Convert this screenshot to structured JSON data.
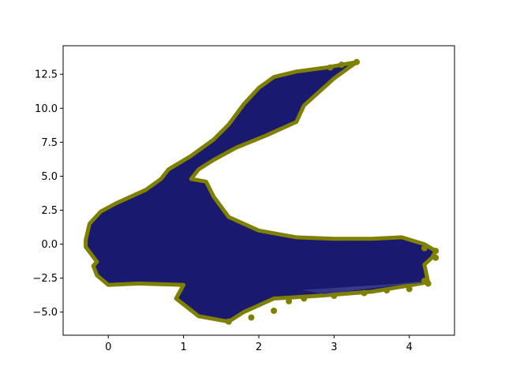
{
  "chart_data": {
    "type": "area",
    "title": "",
    "xlabel": "",
    "ylabel": "",
    "xlim": [
      -0.6,
      4.6
    ],
    "ylim": [
      -6.7,
      14.6
    ],
    "x_ticks": [
      {
        "value": 0,
        "label": "0"
      },
      {
        "value": 1,
        "label": "1"
      },
      {
        "value": 2,
        "label": "2"
      },
      {
        "value": 3,
        "label": "3"
      },
      {
        "value": 4,
        "label": "4"
      }
    ],
    "y_ticks": [
      {
        "value": -5.0,
        "label": "−5.0"
      },
      {
        "value": -2.5,
        "label": "−2.5"
      },
      {
        "value": 0.0,
        "label": "0.0"
      },
      {
        "value": 2.5,
        "label": "2.5"
      },
      {
        "value": 5.0,
        "label": "5.0"
      },
      {
        "value": 7.5,
        "label": "7.5"
      },
      {
        "value": 10.0,
        "label": "10.0"
      },
      {
        "value": 12.5,
        "label": "12.5"
      }
    ],
    "grid": false,
    "colors": {
      "fill": "#191970",
      "edge": "#808000"
    },
    "outline": [
      [
        -0.3,
        0.3
      ],
      [
        -0.25,
        1.5
      ],
      [
        -0.1,
        2.4
      ],
      [
        0.1,
        3.0
      ],
      [
        0.3,
        3.5
      ],
      [
        0.5,
        4.0
      ],
      [
        0.7,
        4.8
      ],
      [
        0.8,
        5.5
      ],
      [
        1.1,
        6.5
      ],
      [
        1.4,
        7.7
      ],
      [
        1.6,
        8.8
      ],
      [
        1.8,
        10.3
      ],
      [
        2.0,
        11.5
      ],
      [
        2.2,
        12.3
      ],
      [
        2.5,
        12.7
      ],
      [
        2.9,
        13.0
      ],
      [
        3.3,
        13.4
      ],
      [
        3.0,
        12.2
      ],
      [
        2.6,
        10.2
      ],
      [
        2.5,
        9.0
      ],
      [
        2.1,
        8.0
      ],
      [
        1.7,
        7.1
      ],
      [
        1.4,
        6.2
      ],
      [
        1.2,
        5.5
      ],
      [
        1.1,
        4.8
      ],
      [
        1.3,
        4.6
      ],
      [
        1.4,
        3.5
      ],
      [
        1.6,
        2.0
      ],
      [
        2.0,
        1.0
      ],
      [
        2.5,
        0.5
      ],
      [
        3.0,
        0.4
      ],
      [
        3.5,
        0.4
      ],
      [
        3.9,
        0.5
      ],
      [
        4.2,
        0.0
      ],
      [
        4.35,
        -0.5
      ],
      [
        4.3,
        -1.0
      ],
      [
        4.2,
        -1.5
      ],
      [
        4.25,
        -2.8
      ],
      [
        3.5,
        -3.5
      ],
      [
        2.8,
        -3.8
      ],
      [
        2.2,
        -4.0
      ],
      [
        2.0,
        -4.5
      ],
      [
        1.8,
        -5.0
      ],
      [
        1.6,
        -5.7
      ],
      [
        1.2,
        -5.3
      ],
      [
        0.9,
        -4.0
      ],
      [
        1.0,
        -3.0
      ],
      [
        0.4,
        -2.9
      ],
      [
        0.0,
        -3.0
      ],
      [
        -0.15,
        -2.3
      ],
      [
        -0.2,
        -1.6
      ],
      [
        -0.15,
        -1.3
      ],
      [
        -0.3,
        -0.2
      ]
    ],
    "markers": [
      [
        1.6,
        -5.7
      ],
      [
        1.9,
        -5.4
      ],
      [
        2.2,
        -4.9
      ],
      [
        2.4,
        -4.2
      ],
      [
        2.6,
        -4.0
      ],
      [
        3.0,
        -3.8
      ],
      [
        3.4,
        -3.6
      ],
      [
        3.7,
        -3.4
      ],
      [
        4.0,
        -3.3
      ],
      [
        4.25,
        -2.9
      ],
      [
        4.2,
        -2.7
      ],
      [
        4.35,
        -0.5
      ],
      [
        4.35,
        -1.0
      ],
      [
        4.2,
        -0.3
      ],
      [
        3.3,
        13.4
      ],
      [
        3.1,
        13.2
      ],
      [
        2.95,
        13.0
      ]
    ]
  }
}
